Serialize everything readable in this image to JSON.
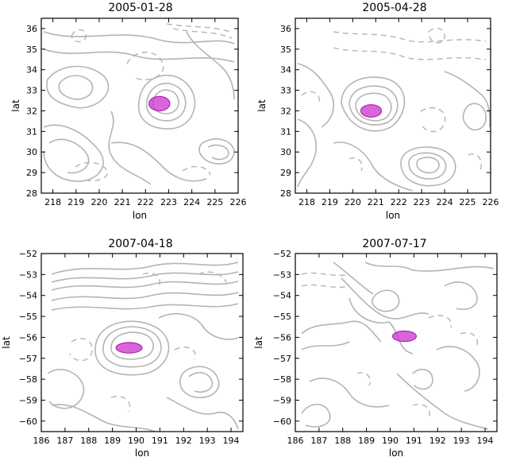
{
  "chart_data": [
    {
      "type": "contour",
      "title": "2005-01-28",
      "xlabel": "lon",
      "ylabel": "lat",
      "xlim": [
        217.5,
        226
      ],
      "ylim": [
        28,
        36.5
      ],
      "xticks": [
        "218",
        "219",
        "220",
        "221",
        "222",
        "223",
        "224",
        "225",
        "226"
      ],
      "yticks": [
        "28",
        "29",
        "30",
        "31",
        "32",
        "33",
        "34",
        "35",
        "36"
      ],
      "eddy_center": [
        222.6,
        32.35
      ],
      "eddy_radius_deg": [
        0.45,
        0.35
      ],
      "eddy_color": "#cc33cc",
      "contour_color": "#b4b4b4"
    },
    {
      "type": "contour",
      "title": "2005-04-28",
      "xlabel": "lon",
      "ylabel": "lat",
      "xlim": [
        217.5,
        226
      ],
      "ylim": [
        28,
        36.5
      ],
      "xticks": [
        "218",
        "219",
        "220",
        "221",
        "222",
        "223",
        "224",
        "225",
        "226"
      ],
      "yticks": [
        "28",
        "29",
        "30",
        "31",
        "32",
        "33",
        "34",
        "35",
        "36"
      ],
      "eddy_center": [
        220.8,
        32.0
      ],
      "eddy_radius_deg": [
        0.45,
        0.3
      ],
      "eddy_color": "#cc33cc",
      "contour_color": "#b4b4b4"
    },
    {
      "type": "contour",
      "title": "2007-04-18",
      "xlabel": "lon",
      "ylabel": "lat",
      "xlim": [
        186,
        194.5
      ],
      "ylim": [
        -60.5,
        -52
      ],
      "xticks": [
        "186",
        "187",
        "188",
        "189",
        "190",
        "191",
        "192",
        "193",
        "194"
      ],
      "yticks": [
        "−52",
        "−53",
        "−54",
        "−55",
        "−56",
        "−57",
        "−58",
        "−59",
        "−60"
      ],
      "eddy_center": [
        189.7,
        -56.5
      ],
      "eddy_radius_deg": [
        0.55,
        0.25
      ],
      "eddy_color": "#cc33cc",
      "contour_color": "#b4b4b4"
    },
    {
      "type": "contour",
      "title": "2007-07-17",
      "xlabel": "lon",
      "ylabel": "lat",
      "xlim": [
        186,
        194.5
      ],
      "ylim": [
        -60.5,
        -52
      ],
      "xticks": [
        "186",
        "187",
        "188",
        "189",
        "190",
        "191",
        "192",
        "193",
        "194"
      ],
      "yticks": [
        "−52",
        "−53",
        "−54",
        "−55",
        "−56",
        "−57",
        "−58",
        "−59",
        "−60"
      ],
      "eddy_center": [
        190.6,
        -55.95
      ],
      "eddy_radius_deg": [
        0.5,
        0.25
      ],
      "eddy_color": "#cc33cc",
      "contour_color": "#b4b4b4"
    }
  ]
}
